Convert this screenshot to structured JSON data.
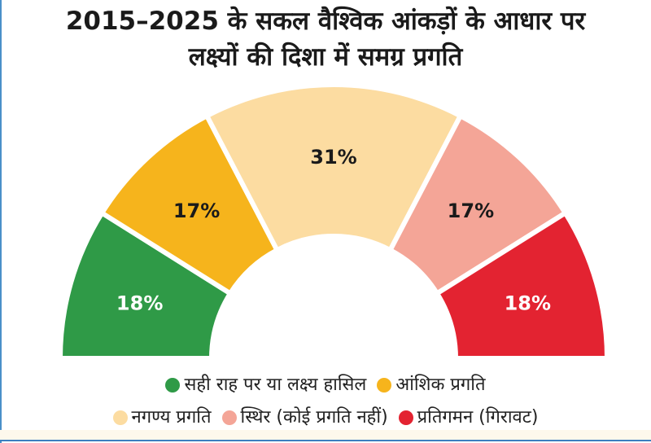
{
  "chart_data": {
    "type": "pie",
    "variant": "semi-donut",
    "title": "2015–2025 के सकल वैश्विक आंकड़ों के आधार पर लक्ष्यों की दिशा में समग्र प्रगति",
    "title_lines": [
      "2015–2025 के सकल वैश्विक आंकड़ों के आधार पर",
      "लक्ष्यों की दिशा में समग्र प्रगति"
    ],
    "legend_position": "bottom",
    "series": [
      {
        "name": "सही राह पर या लक्ष्य हासिल",
        "value": 18,
        "label": "18%",
        "color": "#2f9a47"
      },
      {
        "name": "आंशिक प्रगति",
        "value": 17,
        "label": "17%",
        "color": "#f6b41c"
      },
      {
        "name": "नगण्य प्रगति",
        "value": 31,
        "label": "31%",
        "color": "#fcdca1"
      },
      {
        "name": "स्थिर (कोई प्रगति नहीं)",
        "value": 17,
        "label": "17%",
        "color": "#f4a597"
      },
      {
        "name": "प्रतिगमन (गिरावट)",
        "value": 18,
        "label": "18%",
        "color": "#e32331"
      }
    ]
  }
}
